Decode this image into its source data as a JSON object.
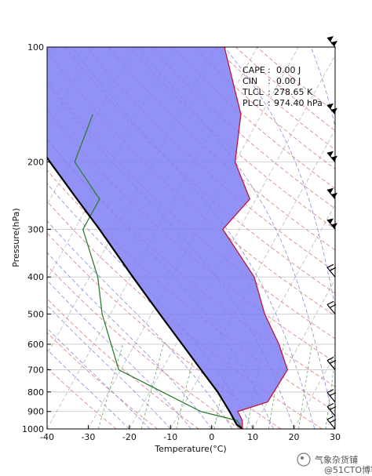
{
  "chart_data": {
    "type": "line",
    "subtype": "skew-t log-p diagram",
    "xlabel": "Temperature(°C)",
    "ylabel": "Pressure(hPa)",
    "xlim": [
      -40,
      30
    ],
    "ylim": [
      1000,
      100
    ],
    "y_scale": "log",
    "x_ticks": [
      -40,
      -30,
      -20,
      -10,
      0,
      10,
      20,
      30
    ],
    "y_ticks": [
      100,
      200,
      300,
      400,
      500,
      600,
      700,
      800,
      900,
      1000
    ],
    "stats": [
      {
        "label": "CAPE",
        "sep": ":",
        "value": "0.00 J"
      },
      {
        "label": "CIN",
        "sep": ":",
        "value": "0.00 J"
      },
      {
        "label": "TLCL",
        "sep": ":",
        "value": "278.65 K"
      },
      {
        "label": "PLCL",
        "sep": ":",
        "value": "974.40 hPa"
      }
    ],
    "series": [
      {
        "role": "temperature",
        "color": "#c0143c",
        "points": [
          [
            1000,
            7.5
          ],
          [
            950,
            6.3
          ],
          [
            900,
            4.0
          ],
          [
            850,
            10.0
          ],
          [
            700,
            10.5
          ],
          [
            600,
            5.0
          ],
          [
            500,
            -2.5
          ],
          [
            400,
            -10.0
          ],
          [
            300,
            -24.0
          ],
          [
            250,
            -21.5
          ],
          [
            200,
            -30.0
          ],
          [
            150,
            -35.0
          ],
          [
            100,
            -48.0
          ]
        ]
      },
      {
        "role": "dewpoint",
        "color": "#2e7d32",
        "points": [
          [
            1000,
            7.5
          ],
          [
            950,
            5.0
          ],
          [
            900,
            -5.0
          ],
          [
            700,
            -30.5
          ],
          [
            500,
            -42.0
          ],
          [
            400,
            -48.0
          ],
          [
            300,
            -58.0
          ],
          [
            250,
            -58.0
          ],
          [
            200,
            -69.0
          ],
          [
            150,
            -71.0
          ]
        ]
      },
      {
        "role": "parcel",
        "color": "#000000",
        "points": [
          [
            1000,
            7.5
          ],
          [
            974.4,
            5.5
          ],
          [
            900,
            2.0
          ],
          [
            800,
            -3.5
          ],
          [
            700,
            -10.5
          ],
          [
            600,
            -18.5
          ],
          [
            500,
            -28.0
          ],
          [
            400,
            -39.5
          ],
          [
            300,
            -54.0
          ],
          [
            250,
            -63.5
          ],
          [
            200,
            -75.0
          ],
          [
            170,
            -83.0
          ]
        ]
      }
    ],
    "shaded_area": {
      "between": [
        "parcel",
        "temperature"
      ],
      "color": "#7f7ff5"
    },
    "wind_barbs": [
      {
        "p": 100
      },
      {
        "p": 150
      },
      {
        "p": 200
      },
      {
        "p": 250
      },
      {
        "p": 300
      },
      {
        "p": 400
      },
      {
        "p": 500
      },
      {
        "p": 700
      },
      {
        "p": 850
      },
      {
        "p": 925
      },
      {
        "p": 1000
      }
    ]
  },
  "watermark": {
    "text": "气象杂货铺",
    "subtext": "@51CTO博客"
  }
}
